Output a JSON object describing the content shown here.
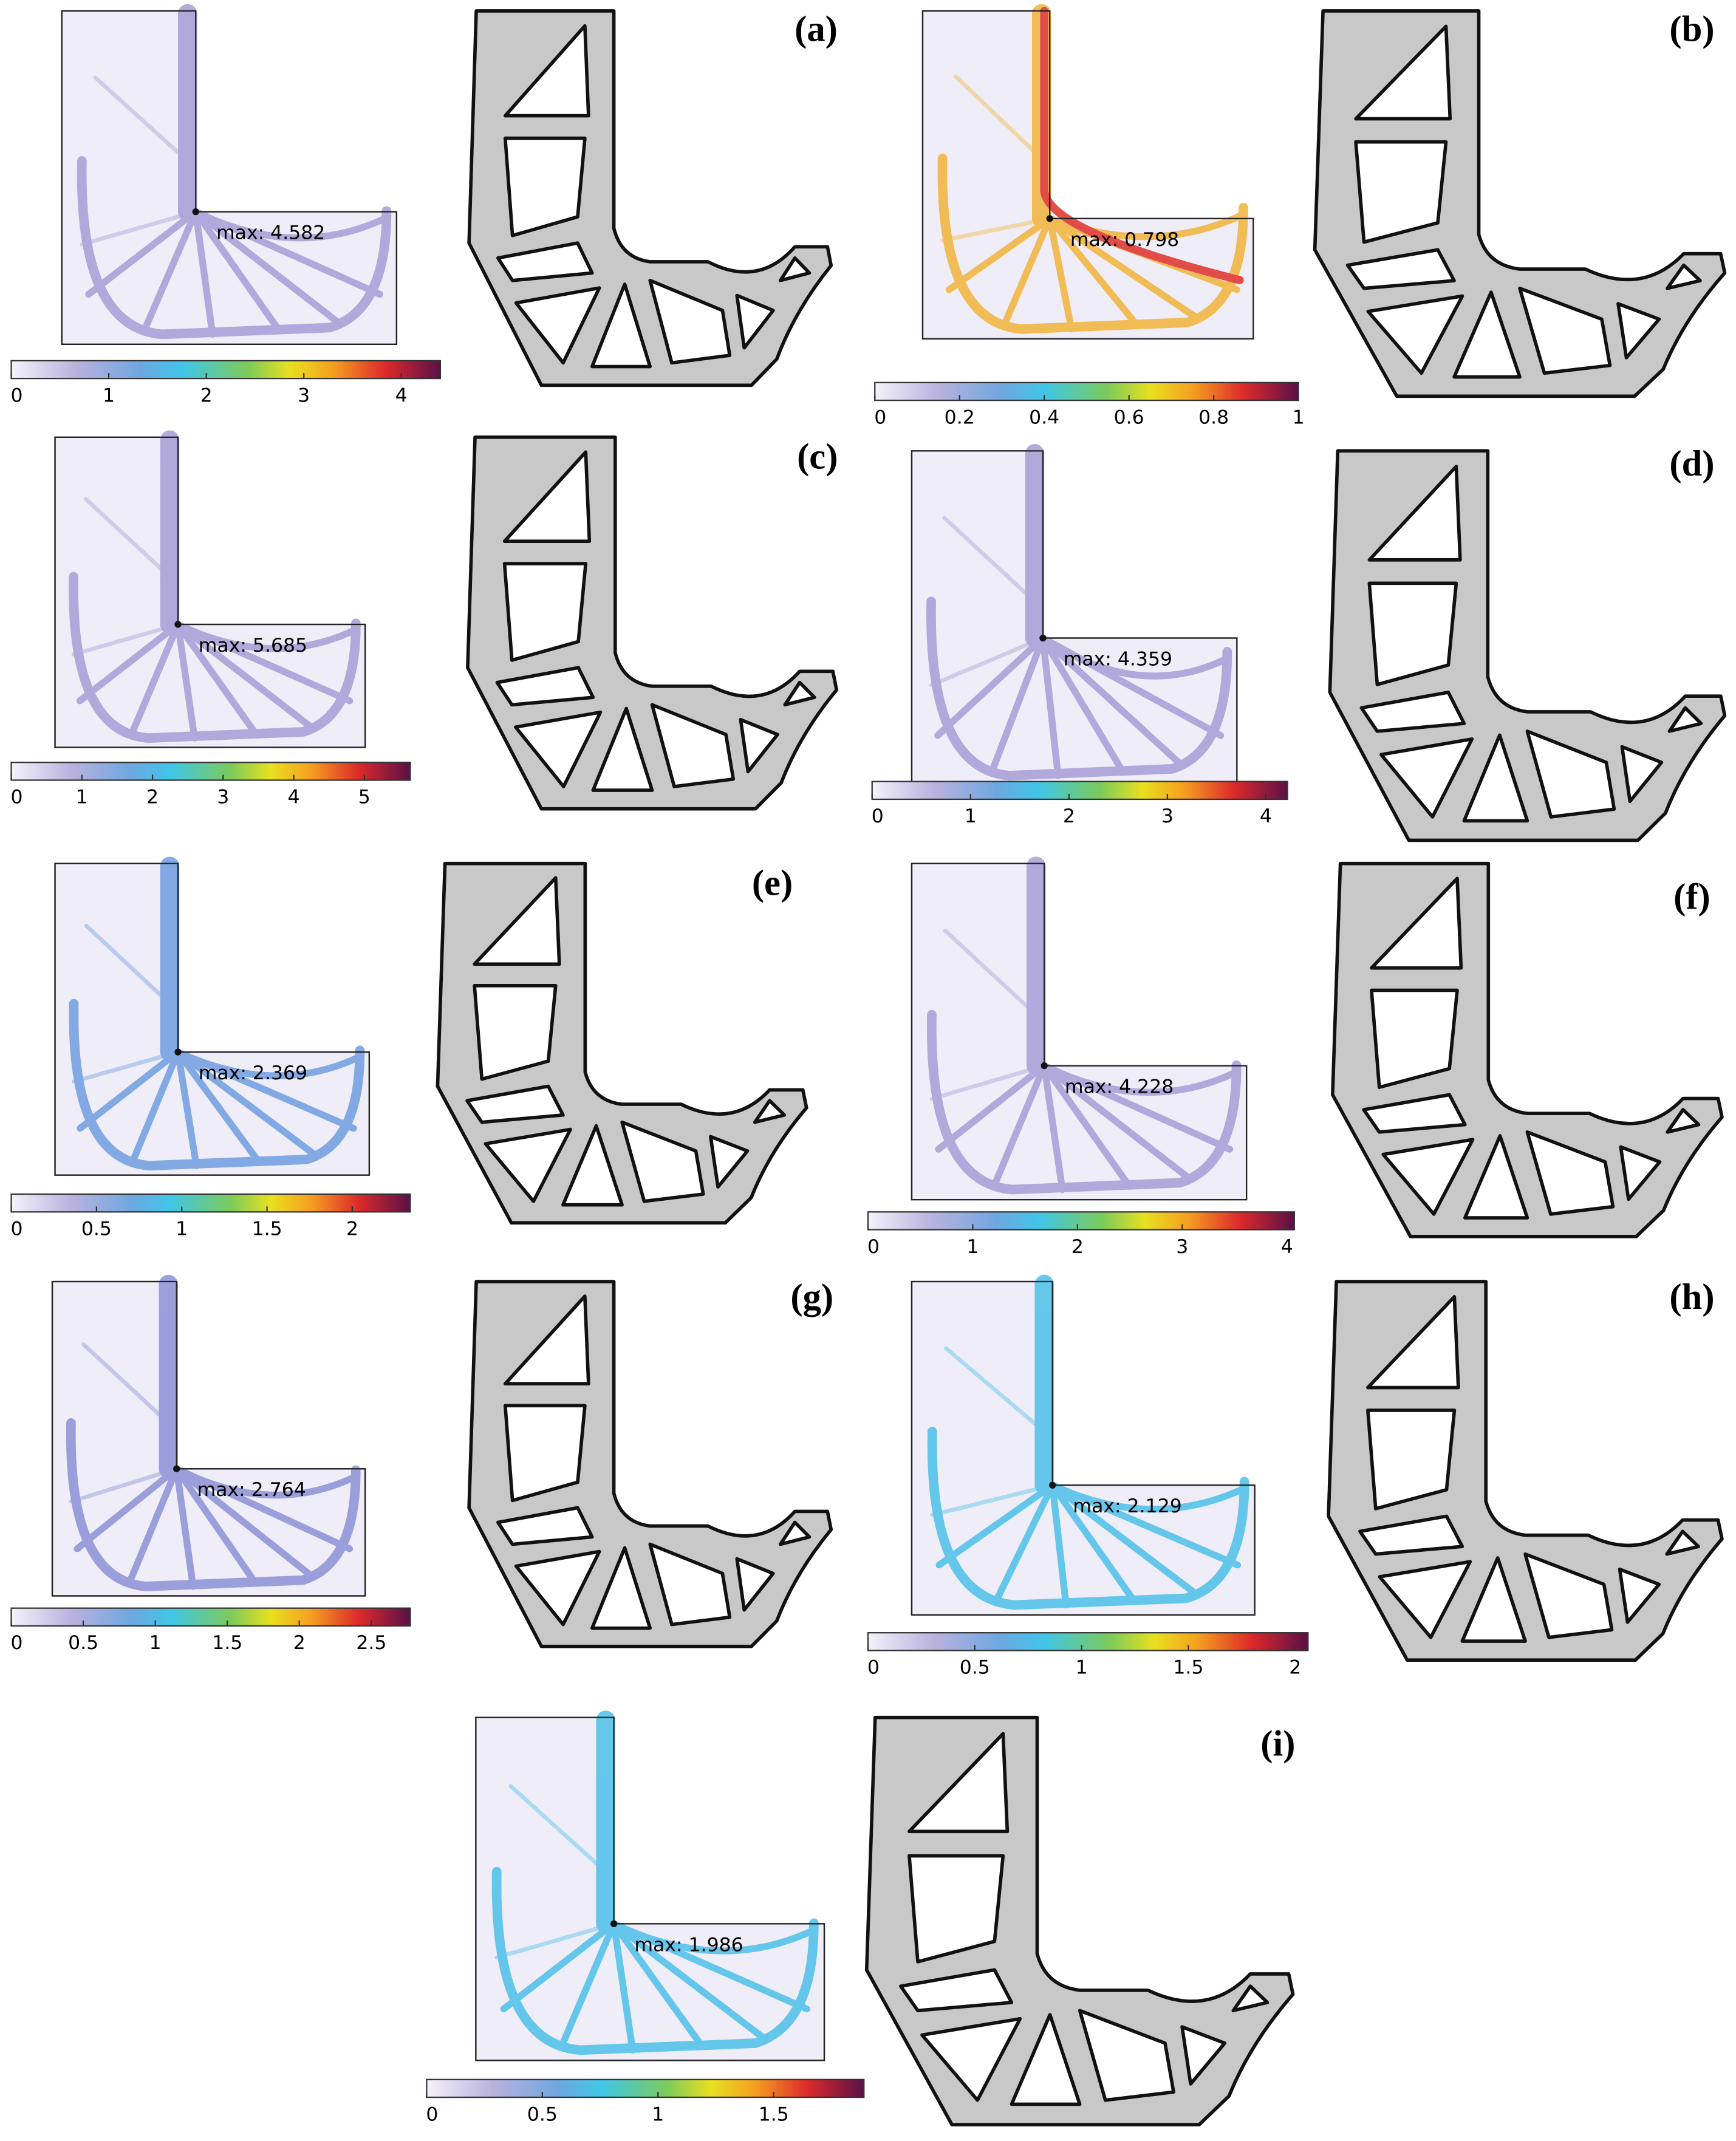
{
  "panels": [
    {
      "label": "(a)",
      "max_label": "max: 4.582",
      "colorbar_range": [
        0,
        4.4
      ],
      "ticks": [
        0,
        1,
        2,
        3,
        4
      ]
    },
    {
      "label": "(b)",
      "max_label": "max: 0.798",
      "colorbar_range": [
        0,
        1
      ],
      "ticks": [
        0,
        0.2,
        0.4,
        0.6,
        0.8,
        1
      ]
    },
    {
      "label": "(c)",
      "max_label": "max: 5.685",
      "colorbar_range": [
        0,
        5.65
      ],
      "ticks": [
        0,
        1,
        2,
        3,
        4,
        5
      ]
    },
    {
      "label": "(d)",
      "max_label": "max: 4.359",
      "colorbar_range": [
        0,
        4.22
      ],
      "ticks": [
        0,
        1,
        2,
        3,
        4
      ]
    },
    {
      "label": "(e)",
      "max_label": "max: 2.369",
      "colorbar_range": [
        0,
        2.34
      ],
      "ticks": [
        0,
        0.5,
        1,
        1.5,
        2
      ]
    },
    {
      "label": "(f)",
      "max_label": "max: 4.228",
      "colorbar_range": [
        0,
        4.07
      ],
      "ticks": [
        0,
        1,
        2,
        3,
        4
      ]
    },
    {
      "label": "(g)",
      "max_label": "max: 2.764",
      "colorbar_range": [
        0,
        2.77
      ],
      "ticks": [
        0,
        0.5,
        1,
        1.5,
        2,
        2.5
      ]
    },
    {
      "label": "(h)",
      "max_label": "max: 2.129",
      "colorbar_range": [
        0,
        2.06
      ],
      "ticks": [
        0,
        0.5,
        1,
        1.5,
        2
      ]
    },
    {
      "label": "(i)",
      "max_label": "max: 1.986",
      "colorbar_range": [
        0,
        1.89
      ],
      "ticks": [
        0,
        0.5,
        1,
        1.5
      ]
    }
  ]
}
